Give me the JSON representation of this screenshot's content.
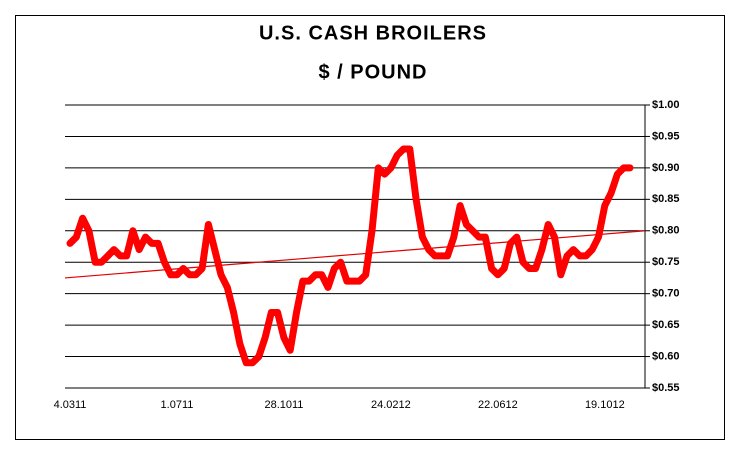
{
  "chart_data": {
    "type": "line",
    "title": "U.S. CASH BROILERS",
    "subtitle": "$ / POUND",
    "categories": [
      "4.0311",
      null,
      null,
      null,
      null,
      null,
      null,
      null,
      null,
      null,
      null,
      null,
      null,
      null,
      null,
      null,
      null,
      "1.0711",
      null,
      null,
      null,
      null,
      null,
      null,
      null,
      null,
      null,
      null,
      null,
      null,
      null,
      null,
      null,
      null,
      "28.1011",
      null,
      null,
      null,
      null,
      null,
      null,
      null,
      null,
      null,
      null,
      null,
      null,
      null,
      null,
      null,
      null,
      "24.0212",
      null,
      null,
      null,
      null,
      null,
      null,
      null,
      null,
      null,
      null,
      null,
      null,
      null,
      null,
      null,
      null,
      "22.0612",
      null,
      null,
      null,
      null,
      null,
      null,
      null,
      null,
      null,
      null,
      null,
      null,
      null,
      null,
      null,
      null,
      "19.1012",
      null,
      null,
      null,
      null
    ],
    "series": [
      {
        "color": "#ff0000",
        "values": [
          0.78,
          0.79,
          0.82,
          0.8,
          0.75,
          0.75,
          0.76,
          0.77,
          0.76,
          0.76,
          0.8,
          0.77,
          0.79,
          0.78,
          0.78,
          0.75,
          0.73,
          0.73,
          0.74,
          0.73,
          0.73,
          0.74,
          0.81,
          0.77,
          0.73,
          0.71,
          0.67,
          0.62,
          0.59,
          0.59,
          0.6,
          0.63,
          0.67,
          0.67,
          0.63,
          0.61,
          0.67,
          0.72,
          0.72,
          0.73,
          0.73,
          0.71,
          0.74,
          0.75,
          0.72,
          0.72,
          0.72,
          0.73,
          0.8,
          0.9,
          0.89,
          0.9,
          0.92,
          0.93,
          0.93,
          0.85,
          0.79,
          0.77,
          0.76,
          0.76,
          0.76,
          0.79,
          0.84,
          0.81,
          0.8,
          0.79,
          0.79,
          0.74,
          0.73,
          0.74,
          0.78,
          0.79,
          0.75,
          0.74,
          0.74,
          0.77,
          0.81,
          0.79,
          0.73,
          0.76,
          0.77,
          0.76,
          0.76,
          0.77,
          0.79,
          0.84,
          0.86,
          0.89,
          0.9,
          0.9
        ]
      }
    ],
    "trendline": {
      "color": "#e00000",
      "start": 0.725,
      "end": 0.8
    },
    "ylim": [
      0.55,
      1.0
    ],
    "yticks": [
      {
        "value": 0.55,
        "label": "$0.55"
      },
      {
        "value": 0.6,
        "label": "$0.60"
      },
      {
        "value": 0.65,
        "label": "$0.65"
      },
      {
        "value": 0.7,
        "label": "$0.70"
      },
      {
        "value": 0.75,
        "label": "$0.75"
      },
      {
        "value": 0.8,
        "label": "$0.80"
      },
      {
        "value": 0.85,
        "label": "$0.85"
      },
      {
        "value": 0.9,
        "label": "$0.90"
      },
      {
        "value": 0.95,
        "label": "$0.95"
      },
      {
        "value": 1.0,
        "label": "$1.00"
      }
    ],
    "grid": true
  }
}
